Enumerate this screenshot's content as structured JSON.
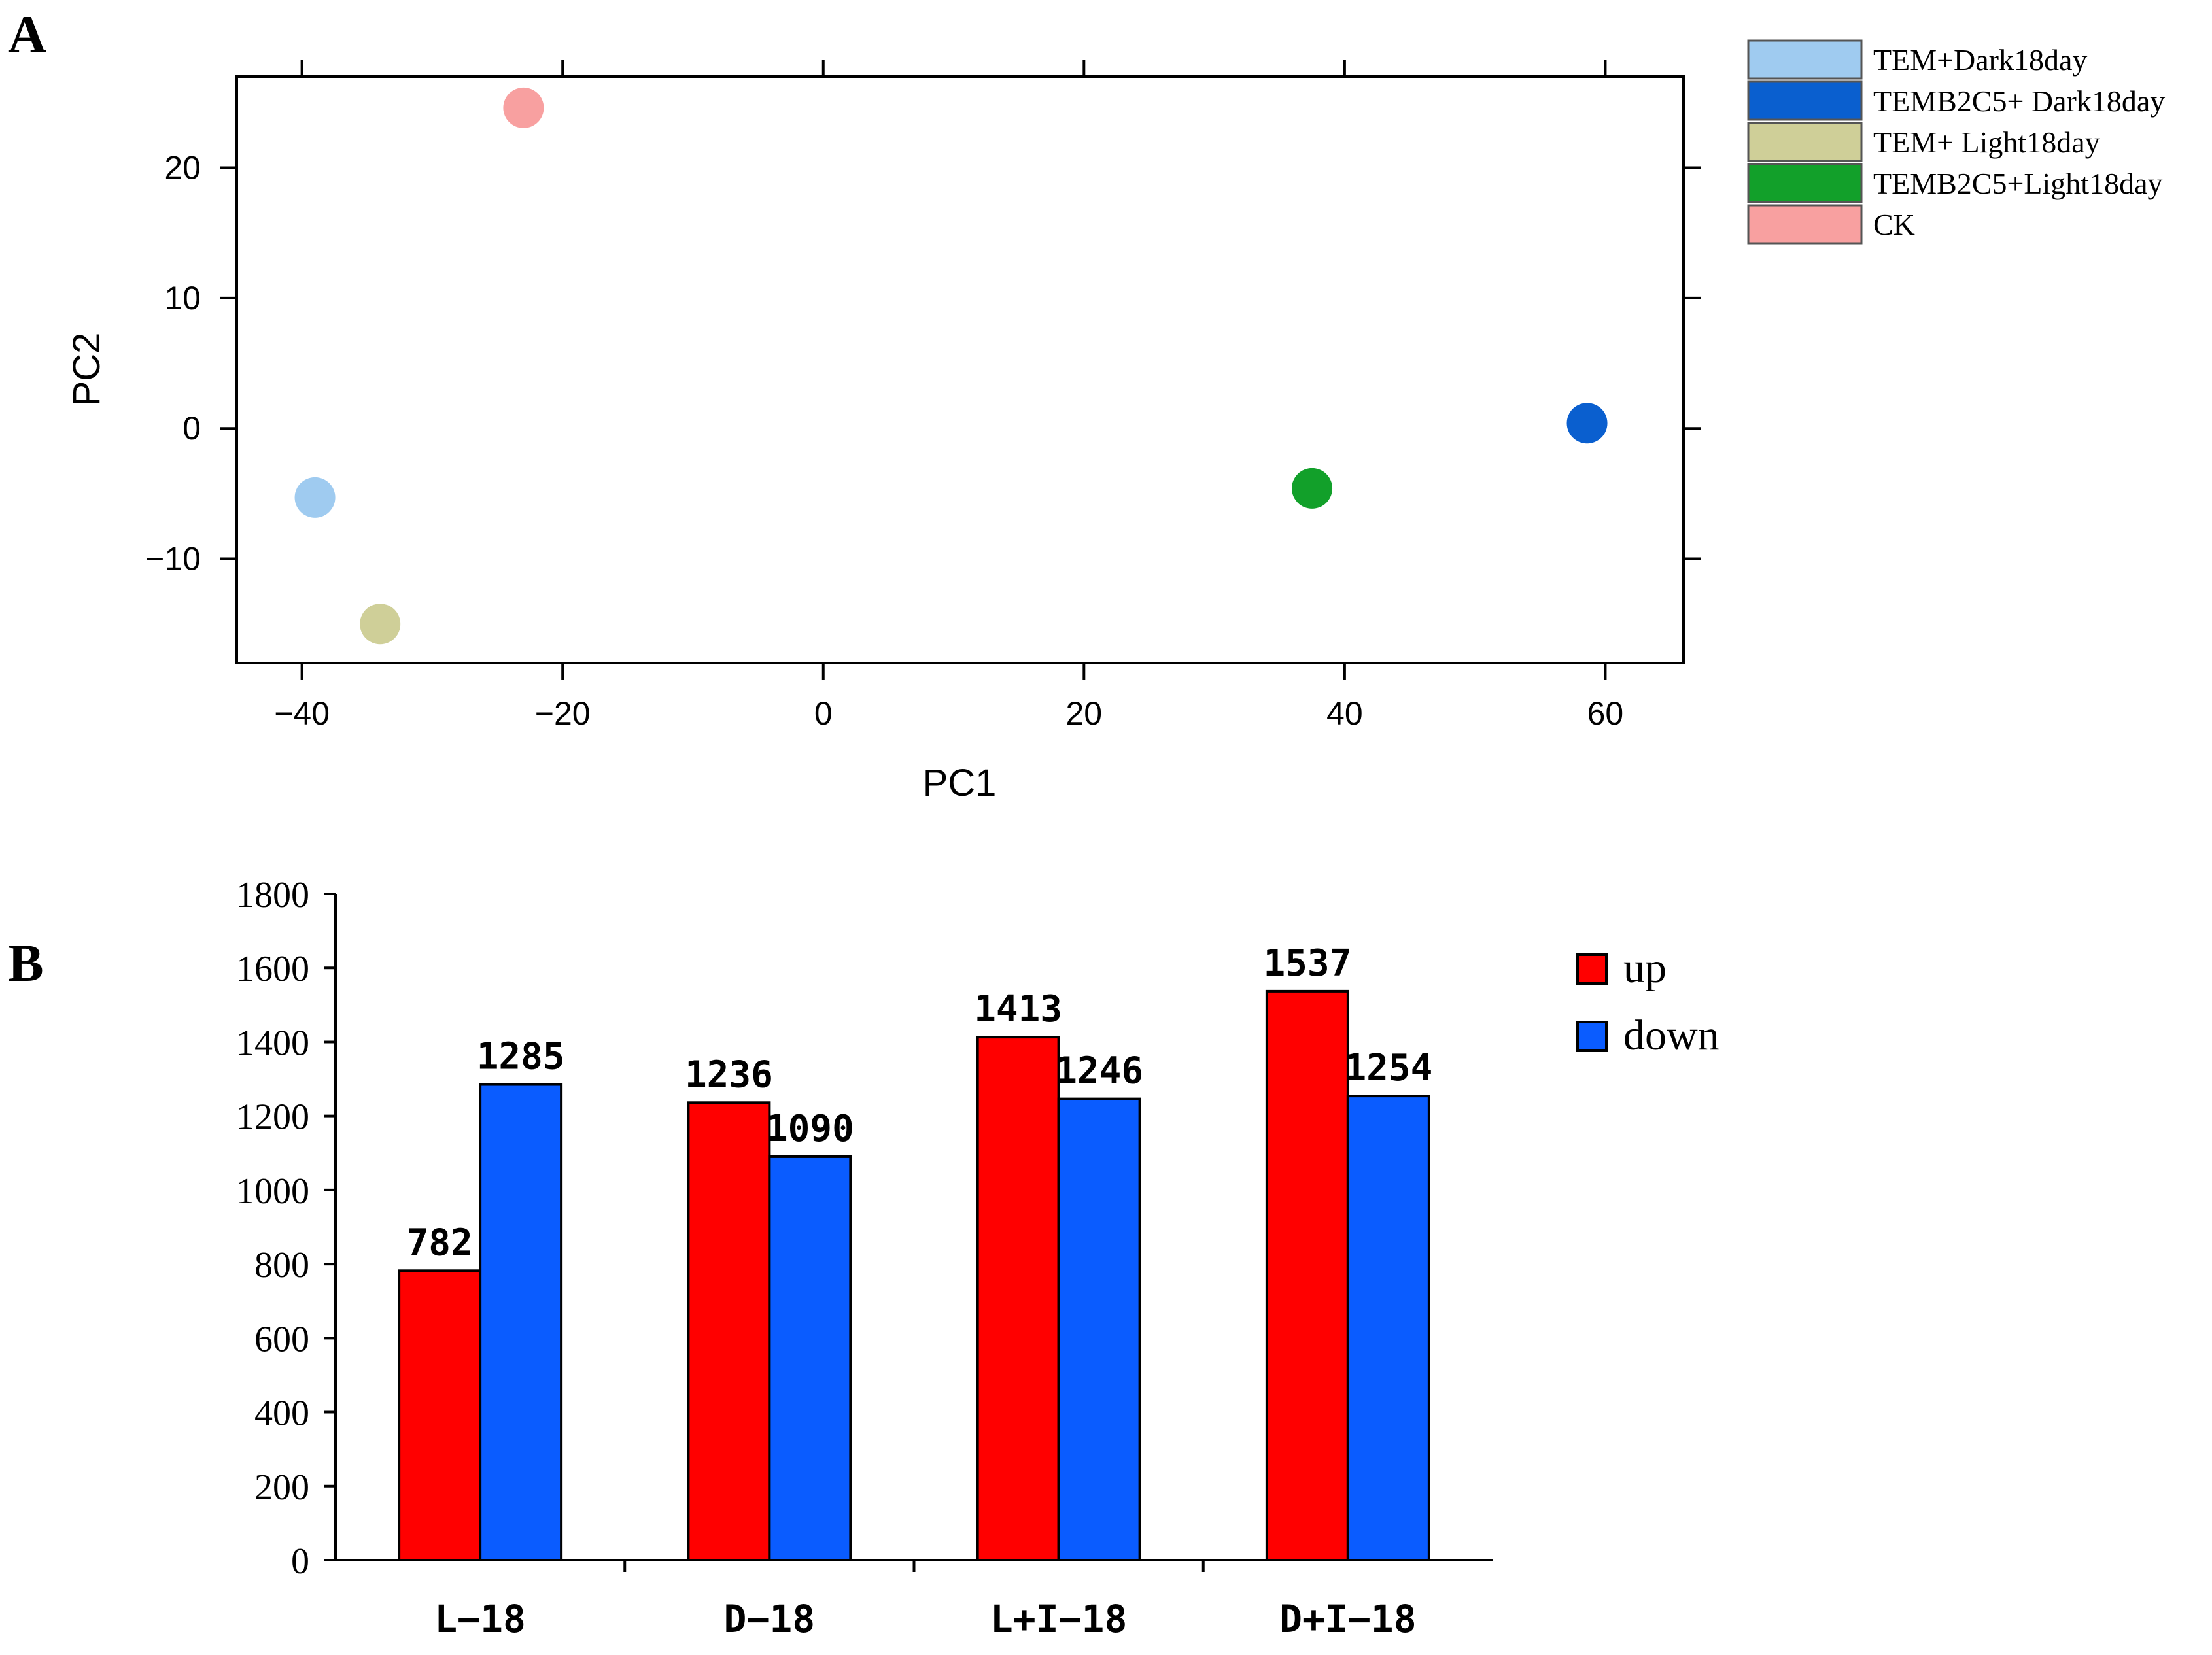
{
  "panel_labels": {
    "a": "A",
    "b": "B"
  },
  "colors": {
    "tem_dark": "#9fcbf0",
    "temb2c5_dark": "#0a5fcf",
    "tem_light": "#cfcf98",
    "temb2c5_light": "#12a02a",
    "ck": "#f8a0a0",
    "up": "#ff0000",
    "down": "#0a5cff",
    "axis": "#000000"
  },
  "chart_data": [
    {
      "id": "pca",
      "type": "scatter",
      "title": "",
      "xlabel": "PC1",
      "ylabel": "PC2",
      "xlim": [
        -45,
        66
      ],
      "ylim": [
        -18,
        27
      ],
      "xticks": [
        -40,
        -20,
        0,
        20,
        40,
        60
      ],
      "xtick_labels": [
        "−40",
        "−20",
        "0",
        "20",
        "40",
        "60"
      ],
      "yticks": [
        -10,
        0,
        10,
        20
      ],
      "ytick_labels": [
        "−10",
        "0",
        "10",
        "20"
      ],
      "grid": false,
      "legend_position": "outside-top-right",
      "series": [
        {
          "name": "TEM+Dark18day",
          "color_key": "tem_dark",
          "points": [
            [
              -39,
              -5.3
            ]
          ]
        },
        {
          "name": "TEMB2C5+ Dark18day",
          "color_key": "temb2c5_dark",
          "points": [
            [
              58.6,
              0.4
            ]
          ]
        },
        {
          "name": "TEM+ Light18day",
          "color_key": "tem_light",
          "points": [
            [
              -34,
              -15
            ]
          ]
        },
        {
          "name": "TEMB2C5+Light18day",
          "color_key": "temb2c5_light",
          "points": [
            [
              37.5,
              -4.6
            ]
          ]
        },
        {
          "name": "CK",
          "color_key": "ck",
          "points": [
            [
              -23,
              24.6
            ]
          ]
        }
      ]
    },
    {
      "id": "deg",
      "type": "bar",
      "title": "",
      "xlabel": "",
      "ylabel": "",
      "categories": [
        "L−18",
        "D−18",
        "L+I−18",
        "D+I−18"
      ],
      "ylim": [
        0,
        1800
      ],
      "yticks": [
        0,
        200,
        400,
        600,
        800,
        1000,
        1200,
        1400,
        1600,
        1800
      ],
      "grid": false,
      "legend_position": "right",
      "series": [
        {
          "name": "up",
          "color_key": "up",
          "values": [
            782,
            1236,
            1413,
            1537
          ]
        },
        {
          "name": "down",
          "color_key": "down",
          "values": [
            1285,
            1090,
            1246,
            1254
          ]
        }
      ]
    }
  ]
}
